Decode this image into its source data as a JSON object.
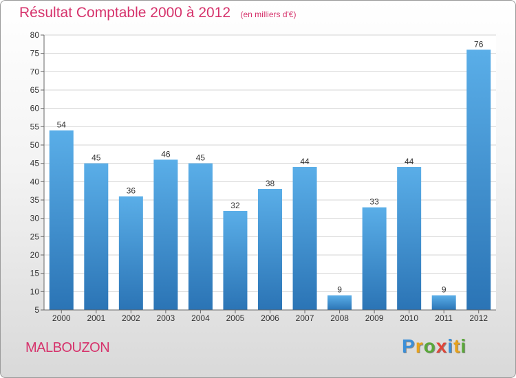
{
  "title": "Résultat Comptable 2000 à 2012",
  "unit": "(en milliers d'€)",
  "town": "MALBOUZON",
  "logo": {
    "letters": [
      {
        "ch": "P",
        "color": "#3b8fd8"
      },
      {
        "ch": "r",
        "color": "#e8a21b"
      },
      {
        "ch": "o",
        "color": "#5aa83a"
      },
      {
        "ch": "x",
        "color": "#e0463a"
      },
      {
        "ch": "i",
        "color": "#3b8fd8"
      },
      {
        "ch": "t",
        "color": "#e8a21b"
      },
      {
        "ch": "i",
        "color": "#5aa83a"
      }
    ]
  },
  "colors": {
    "bar_top": "#5aaee8",
    "bar_bottom": "#2b74b5",
    "title": "#d6336c"
  },
  "chart_data": {
    "type": "bar",
    "categories": [
      "2000",
      "2001",
      "2002",
      "2003",
      "2004",
      "2005",
      "2006",
      "2007",
      "2008",
      "2009",
      "2010",
      "2011",
      "2012"
    ],
    "values": [
      54,
      45,
      36,
      46,
      45,
      32,
      38,
      44,
      9,
      33,
      44,
      9,
      76
    ],
    "data_labels": [
      "54",
      "45",
      "36",
      "46",
      "45",
      "32",
      "38",
      "44",
      "9",
      "33",
      "44",
      "9",
      "76"
    ],
    "ylim": [
      5,
      80
    ],
    "yticks": [
      5,
      10,
      15,
      20,
      25,
      30,
      35,
      40,
      45,
      50,
      55,
      60,
      65,
      70,
      75,
      80
    ],
    "grid": true
  }
}
